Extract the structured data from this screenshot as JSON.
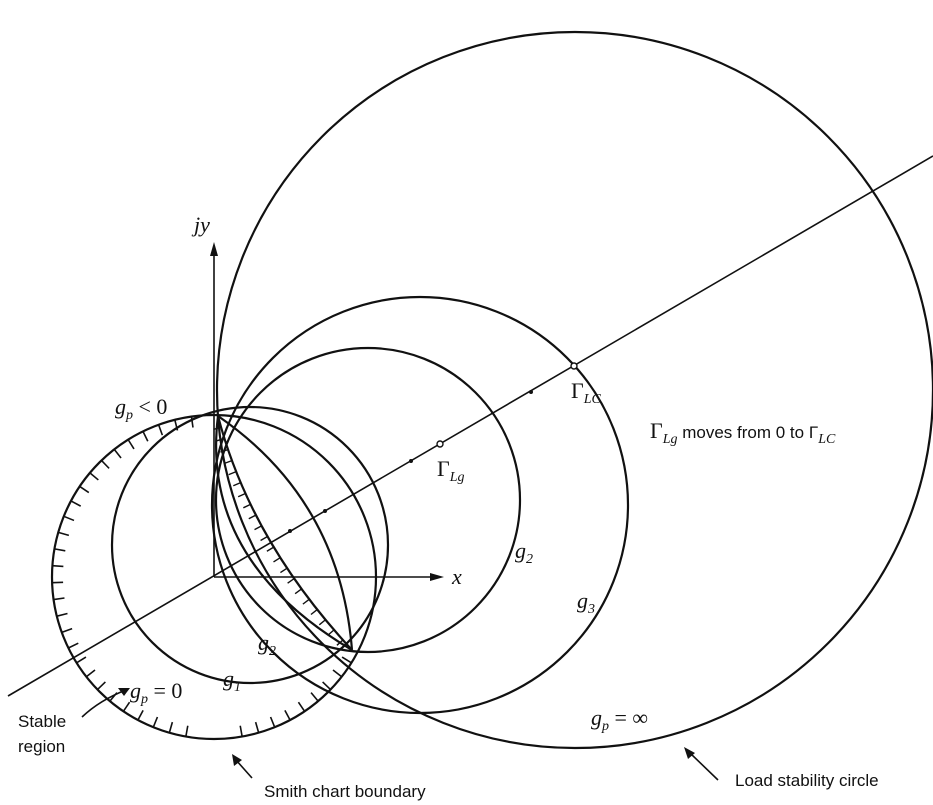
{
  "labels": {
    "jy": "jy",
    "x": "x",
    "gp_neg": "g",
    "gp_neg_sub": "p",
    "gp_neg_rel": " < 0",
    "gp_zero": "g",
    "gp_zero_sub": "p",
    "gp_zero_rel": " = 0",
    "gp_inf": "g",
    "gp_inf_sub": "p",
    "gp_inf_rel": " = ∞",
    "gamma_lc": "Γ",
    "gamma_lc_sub": "LC",
    "gamma_lg": "Γ",
    "gamma_lg_sub": "Lg",
    "moves_gamma": "Γ",
    "moves_gamma_sub": "Lg",
    "moves_text": " moves from 0 to Γ",
    "moves_text_sub": "LC",
    "g1": "g",
    "g1_sub": "1",
    "g2a": "g",
    "g2a_sub": "2",
    "g2b": "g",
    "g2b_sub": "2",
    "g3": "g",
    "g3_sub": "3",
    "stable_region_1": "Stable",
    "stable_region_2": "region",
    "smith_boundary": "Smith chart boundary",
    "load_circle": "Load stability circle"
  }
}
